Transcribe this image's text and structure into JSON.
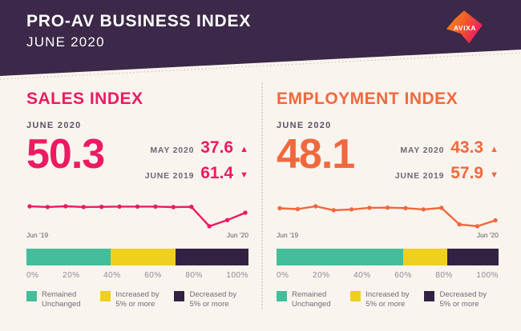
{
  "header": {
    "title": "PRO-AV BUSINESS INDEX",
    "subtitle": "JUNE 2020",
    "logo_text": "AVIXA",
    "bg_color": "#3C2849"
  },
  "colors": {
    "background": "#FAF4EE",
    "header_bg": "#3C2849",
    "sales_accent": "#EC1A63",
    "employment_accent": "#F2683C",
    "remained": "#44BD9B",
    "increased": "#F0D01E",
    "decreased": "#332144"
  },
  "ticks": [
    "0%",
    "20%",
    "40%",
    "60%",
    "80%",
    "100%"
  ],
  "legend": [
    {
      "line1": "Remained",
      "line2": "Unchanged",
      "color": "#44BD9B"
    },
    {
      "line1": "Increased by",
      "line2": "5% or more",
      "color": "#F0D01E"
    },
    {
      "line1": "Decreased by",
      "line2": "5% or more",
      "color": "#332144"
    }
  ],
  "panels": [
    {
      "id": "sales",
      "title": "SALES INDEX",
      "accent": "#EC1A63",
      "current_label": "JUNE 2020",
      "current_value": "50.3",
      "comparisons": [
        {
          "label": "MAY 2020",
          "value": "37.6",
          "direction": "up",
          "glyph": "▲"
        },
        {
          "label": "JUNE 2019",
          "value": "61.4",
          "direction": "down",
          "glyph": "▼"
        }
      ],
      "sparkline": {
        "start_label": "Jun '19",
        "end_label": "Jun '20",
        "values": [
          61.4,
          60.2,
          61.5,
          60.3,
          60.6,
          61.0,
          60.9,
          61.0,
          60.1,
          60.5,
          27.0,
          37.6,
          50.3
        ]
      },
      "bar_segments": [
        38,
        29,
        33
      ]
    },
    {
      "id": "employment",
      "title": "EMPLOYMENT INDEX",
      "accent": "#F2683C",
      "current_label": "JUNE 2020",
      "current_value": "48.1",
      "comparisons": [
        {
          "label": "MAY 2020",
          "value": "43.3",
          "direction": "up",
          "glyph": "▲"
        },
        {
          "label": "JUNE 2019",
          "value": "57.9",
          "direction": "down",
          "glyph": "▼"
        }
      ],
      "sparkline": {
        "start_label": "Jun '19",
        "end_label": "Jun '20",
        "values": [
          57.9,
          57.2,
          59.5,
          56.3,
          57.0,
          58.3,
          58.4,
          58.0,
          57.0,
          58.2,
          44.8,
          43.3,
          48.1
        ]
      },
      "bar_segments": [
        57,
        20,
        23
      ]
    }
  ],
  "chart_data": [
    {
      "type": "line",
      "title": "Sales Index trend",
      "x": [
        "Jun '19",
        "Jul '19",
        "Aug '19",
        "Sep '19",
        "Oct '19",
        "Nov '19",
        "Dec '19",
        "Jan '20",
        "Feb '20",
        "Mar '20",
        "Apr '20",
        "May '20",
        "Jun '20"
      ],
      "values": [
        61.4,
        60.2,
        61.5,
        60.3,
        60.6,
        61.0,
        60.9,
        61.0,
        60.1,
        60.5,
        27.0,
        37.6,
        50.3
      ],
      "visible_axis_labels": [
        "Jun '19",
        "Jun '20"
      ],
      "line_color": "#EC1A63",
      "grid": false,
      "markers": true
    },
    {
      "type": "line",
      "title": "Employment Index trend",
      "x": [
        "Jun '19",
        "Jul '19",
        "Aug '19",
        "Sep '19",
        "Oct '19",
        "Nov '19",
        "Dec '19",
        "Jan '20",
        "Feb '20",
        "Mar '20",
        "Apr '20",
        "May '20",
        "Jun '20"
      ],
      "values": [
        57.9,
        57.2,
        59.5,
        56.3,
        57.0,
        58.3,
        58.4,
        58.0,
        57.0,
        58.2,
        44.8,
        43.3,
        48.1
      ],
      "visible_axis_labels": [
        "Jun '19",
        "Jun '20"
      ],
      "line_color": "#F2683C",
      "grid": false,
      "markers": true
    },
    {
      "type": "bar",
      "title": "Sales: share of companies (stacked horizontal, %)",
      "categories": [
        "Remained Unchanged",
        "Increased by 5% or more",
        "Decreased by 5% or more"
      ],
      "values": [
        38,
        29,
        33
      ],
      "colors": [
        "#44BD9B",
        "#F0D01E",
        "#332144"
      ],
      "xlim": [
        0,
        100
      ],
      "tick_labels": [
        "0%",
        "20%",
        "40%",
        "60%",
        "80%",
        "100%"
      ]
    },
    {
      "type": "bar",
      "title": "Employment: share of companies (stacked horizontal, %)",
      "categories": [
        "Remained Unchanged",
        "Increased by 5% or more",
        "Decreased by 5% or more"
      ],
      "values": [
        57,
        20,
        23
      ],
      "colors": [
        "#44BD9B",
        "#F0D01E",
        "#332144"
      ],
      "xlim": [
        0,
        100
      ],
      "tick_labels": [
        "0%",
        "20%",
        "40%",
        "60%",
        "80%",
        "100%"
      ]
    }
  ]
}
